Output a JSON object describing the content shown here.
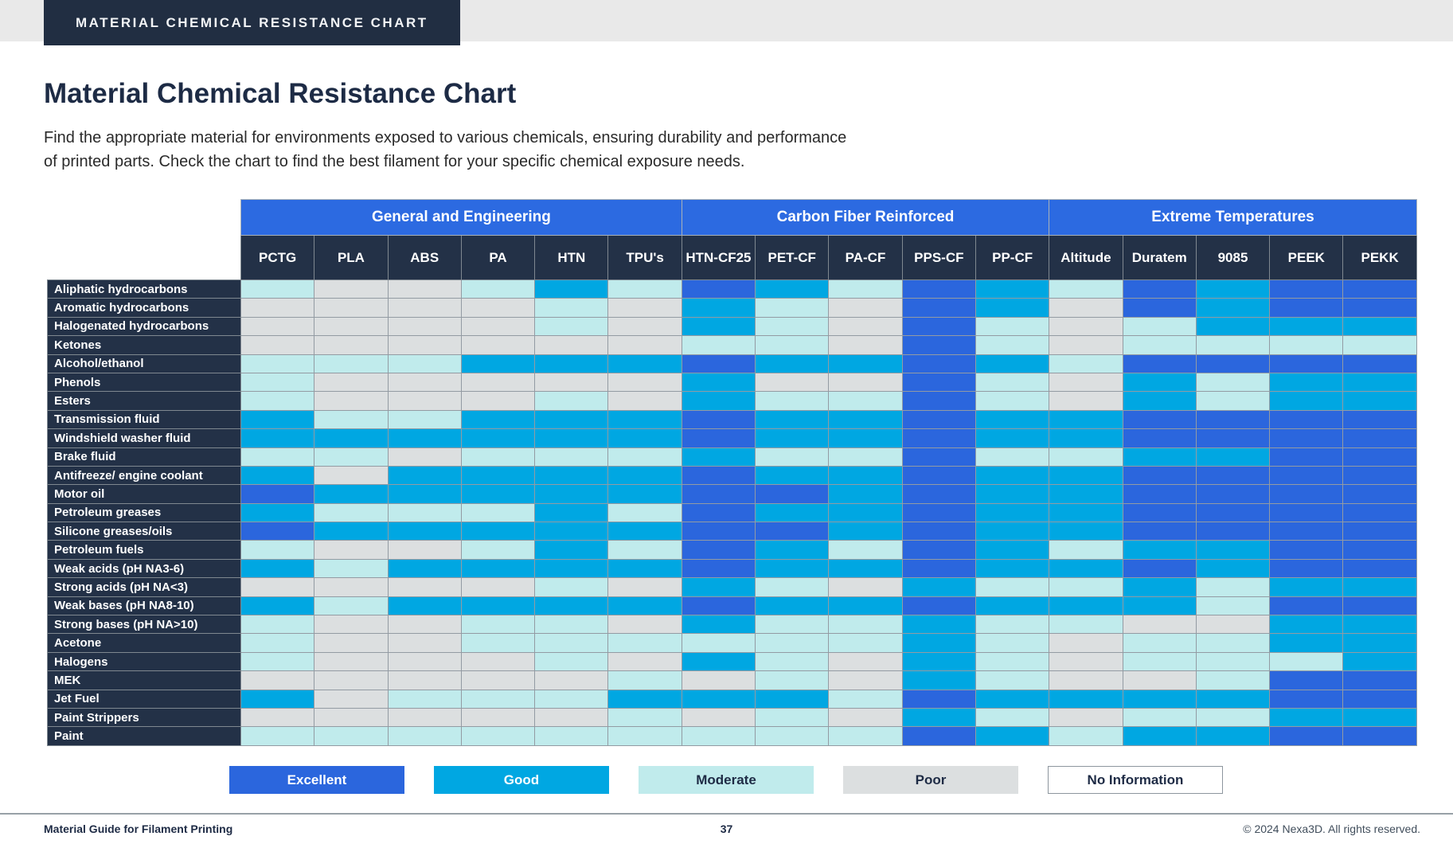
{
  "banner": {
    "label": "MATERIAL CHEMICAL RESISTANCE CHART"
  },
  "header": {
    "title": "Material Chemical Resistance Chart",
    "subtitle_line1": "Find the appropriate material for environments exposed to various chemicals, ensuring durability and performance",
    "subtitle_line2": "of printed parts. Check the chart to find the best filament for your specific chemical exposure needs."
  },
  "chart_data": {
    "type": "heatmap",
    "title": "Material Chemical Resistance Chart",
    "column_groups": [
      {
        "label": "General and Engineering",
        "columns": [
          "PCTG",
          "PLA",
          "ABS",
          "PA",
          "HTN",
          "TPU's"
        ]
      },
      {
        "label": "Carbon Fiber Reinforced",
        "columns": [
          "HTN-CF25",
          "PET-CF",
          "PA-CF",
          "PPS-CF",
          "PP-CF"
        ]
      },
      {
        "label": "Extreme Temperatures",
        "columns": [
          "Altitude",
          "Duratem",
          "9085",
          "PEEK",
          "PEKK"
        ]
      }
    ],
    "levels": {
      "E": {
        "label": "Excellent",
        "color": "#2b66dd",
        "text": "#ffffff"
      },
      "G": {
        "label": "Good",
        "color": "#00a7e2",
        "text": "#ffffff"
      },
      "M": {
        "label": "Moderate",
        "color": "#c0ebec",
        "text": "#1e2b45"
      },
      "P": {
        "label": "Poor",
        "color": "#dcdfe0",
        "text": "#1e2b45"
      },
      "N": {
        "label": "No Information",
        "color": "#ffffff",
        "text": "#1e2b45"
      }
    },
    "rows": [
      {
        "chemical": "Aliphatic hydrocarbons",
        "values": [
          "M",
          "P",
          "P",
          "M",
          "G",
          "M",
          "E",
          "G",
          "M",
          "E",
          "G",
          "M",
          "E",
          "G",
          "E",
          "E"
        ]
      },
      {
        "chemical": "Aromatic hydrocarbons",
        "values": [
          "P",
          "P",
          "P",
          "P",
          "M",
          "P",
          "G",
          "M",
          "P",
          "E",
          "G",
          "P",
          "E",
          "G",
          "E",
          "E"
        ]
      },
      {
        "chemical": "Halogenated hydrocarbons",
        "values": [
          "P",
          "P",
          "P",
          "P",
          "M",
          "P",
          "G",
          "M",
          "P",
          "E",
          "M",
          "P",
          "M",
          "G",
          "G",
          "G"
        ]
      },
      {
        "chemical": "Ketones",
        "values": [
          "P",
          "P",
          "P",
          "P",
          "P",
          "P",
          "M",
          "M",
          "P",
          "E",
          "M",
          "P",
          "M",
          "M",
          "M",
          "M"
        ]
      },
      {
        "chemical": "Alcohol/ethanol",
        "values": [
          "M",
          "M",
          "M",
          "G",
          "G",
          "G",
          "E",
          "G",
          "G",
          "E",
          "G",
          "M",
          "E",
          "E",
          "E",
          "E"
        ]
      },
      {
        "chemical": "Phenols",
        "values": [
          "M",
          "P",
          "P",
          "P",
          "P",
          "P",
          "G",
          "P",
          "P",
          "E",
          "M",
          "P",
          "G",
          "M",
          "G",
          "G"
        ]
      },
      {
        "chemical": "Esters",
        "values": [
          "M",
          "P",
          "P",
          "P",
          "M",
          "P",
          "G",
          "M",
          "M",
          "E",
          "M",
          "P",
          "G",
          "M",
          "G",
          "G"
        ]
      },
      {
        "chemical": "Transmission fluid",
        "values": [
          "G",
          "M",
          "M",
          "G",
          "G",
          "G",
          "E",
          "G",
          "G",
          "E",
          "G",
          "G",
          "E",
          "E",
          "E",
          "E"
        ]
      },
      {
        "chemical": "Windshield washer fluid",
        "values": [
          "G",
          "G",
          "G",
          "G",
          "G",
          "G",
          "E",
          "G",
          "G",
          "E",
          "G",
          "G",
          "E",
          "E",
          "E",
          "E"
        ]
      },
      {
        "chemical": "Brake fluid",
        "values": [
          "M",
          "M",
          "P",
          "M",
          "M",
          "M",
          "G",
          "M",
          "M",
          "E",
          "M",
          "M",
          "G",
          "G",
          "E",
          "E"
        ]
      },
      {
        "chemical": "Antifreeze/ engine coolant",
        "values": [
          "G",
          "P",
          "G",
          "G",
          "G",
          "G",
          "E",
          "G",
          "G",
          "E",
          "G",
          "G",
          "E",
          "E",
          "E",
          "E"
        ]
      },
      {
        "chemical": "Motor oil",
        "values": [
          "E",
          "G",
          "G",
          "G",
          "G",
          "G",
          "E",
          "E",
          "G",
          "E",
          "G",
          "G",
          "E",
          "E",
          "E",
          "E"
        ]
      },
      {
        "chemical": "Petroleum greases",
        "values": [
          "G",
          "M",
          "M",
          "M",
          "G",
          "M",
          "E",
          "G",
          "G",
          "E",
          "G",
          "G",
          "E",
          "E",
          "E",
          "E"
        ]
      },
      {
        "chemical": "Silicone greases/oils",
        "values": [
          "E",
          "G",
          "G",
          "G",
          "G",
          "G",
          "E",
          "E",
          "G",
          "E",
          "G",
          "G",
          "E",
          "E",
          "E",
          "E"
        ]
      },
      {
        "chemical": "Petroleum fuels",
        "values": [
          "M",
          "P",
          "P",
          "M",
          "G",
          "M",
          "E",
          "G",
          "M",
          "E",
          "G",
          "M",
          "G",
          "G",
          "E",
          "E"
        ]
      },
      {
        "chemical": "Weak acids (pH NA3-6)",
        "values": [
          "G",
          "M",
          "G",
          "G",
          "G",
          "G",
          "E",
          "G",
          "G",
          "E",
          "G",
          "G",
          "E",
          "G",
          "E",
          "E"
        ]
      },
      {
        "chemical": "Strong acids (pH NA<3)",
        "values": [
          "P",
          "P",
          "P",
          "P",
          "M",
          "P",
          "G",
          "M",
          "P",
          "G",
          "M",
          "M",
          "G",
          "M",
          "G",
          "G"
        ]
      },
      {
        "chemical": "Weak bases (pH NA8-10)",
        "values": [
          "G",
          "M",
          "G",
          "G",
          "G",
          "G",
          "E",
          "G",
          "G",
          "E",
          "G",
          "G",
          "G",
          "M",
          "E",
          "E"
        ]
      },
      {
        "chemical": "Strong bases (pH NA>10)",
        "values": [
          "M",
          "P",
          "P",
          "M",
          "M",
          "P",
          "G",
          "M",
          "M",
          "G",
          "M",
          "M",
          "P",
          "P",
          "G",
          "G"
        ]
      },
      {
        "chemical": "Acetone",
        "values": [
          "M",
          "P",
          "P",
          "M",
          "M",
          "M",
          "M",
          "M",
          "M",
          "G",
          "M",
          "P",
          "M",
          "M",
          "G",
          "G"
        ]
      },
      {
        "chemical": "Halogens",
        "values": [
          "M",
          "P",
          "P",
          "P",
          "M",
          "P",
          "G",
          "M",
          "P",
          "G",
          "M",
          "P",
          "M",
          "M",
          "M",
          "G"
        ]
      },
      {
        "chemical": "MEK",
        "values": [
          "P",
          "P",
          "P",
          "P",
          "P",
          "M",
          "P",
          "M",
          "P",
          "G",
          "M",
          "P",
          "P",
          "M",
          "E",
          "E"
        ]
      },
      {
        "chemical": "Jet Fuel",
        "values": [
          "G",
          "P",
          "M",
          "M",
          "M",
          "G",
          "G",
          "G",
          "M",
          "E",
          "G",
          "G",
          "G",
          "G",
          "E",
          "E"
        ]
      },
      {
        "chemical": "Paint Strippers",
        "values": [
          "P",
          "P",
          "P",
          "P",
          "P",
          "M",
          "P",
          "M",
          "P",
          "G",
          "M",
          "P",
          "M",
          "M",
          "G",
          "G"
        ]
      },
      {
        "chemical": "Paint",
        "values": [
          "M",
          "M",
          "M",
          "M",
          "M",
          "M",
          "M",
          "M",
          "M",
          "E",
          "G",
          "M",
          "G",
          "G",
          "E",
          "E"
        ]
      }
    ],
    "layout": {
      "label_col_width": 243,
      "data_col_width": 92.3,
      "legend_position": "bottom"
    }
  },
  "legend": {
    "items": [
      {
        "code": "E",
        "label": "Excellent"
      },
      {
        "code": "G",
        "label": "Good"
      },
      {
        "code": "M",
        "label": "Moderate"
      },
      {
        "code": "P",
        "label": "Poor"
      },
      {
        "code": "N",
        "label": "No Information"
      }
    ]
  },
  "footer": {
    "left": "Material Guide for Filament  Printing",
    "page": "37",
    "right": "© 2024 Nexa3D. All rights reserved."
  }
}
